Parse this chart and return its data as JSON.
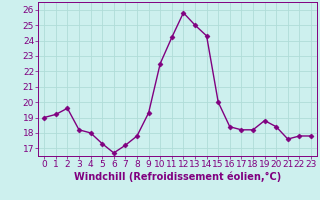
{
  "x": [
    0,
    1,
    2,
    3,
    4,
    5,
    6,
    7,
    8,
    9,
    10,
    11,
    12,
    13,
    14,
    15,
    16,
    17,
    18,
    19,
    20,
    21,
    22,
    23
  ],
  "y": [
    19.0,
    19.2,
    19.6,
    18.2,
    18.0,
    17.3,
    16.7,
    17.2,
    17.8,
    19.3,
    22.5,
    24.2,
    25.8,
    25.0,
    24.3,
    20.0,
    18.4,
    18.2,
    18.2,
    18.8,
    18.4,
    17.6,
    17.8,
    17.8
  ],
  "line_color": "#800080",
  "marker": "D",
  "marker_size": 2.5,
  "line_width": 1.0,
  "xlabel": "Windchill (Refroidissement éolien,°C)",
  "xlabel_fontsize": 7,
  "ylabel_ticks": [
    17,
    18,
    19,
    20,
    21,
    22,
    23,
    24,
    25,
    26
  ],
  "xtick_labels": [
    "0",
    "1",
    "2",
    "3",
    "4",
    "5",
    "6",
    "7",
    "8",
    "9",
    "10",
    "11",
    "12",
    "13",
    "14",
    "15",
    "16",
    "17",
    "18",
    "19",
    "20",
    "21",
    "22",
    "23"
  ],
  "ylim": [
    16.5,
    26.5
  ],
  "xlim": [
    -0.5,
    23.5
  ],
  "bg_color": "#cdf0ee",
  "grid_color": "#b0dcd8",
  "tick_color": "#800080",
  "tick_fontsize": 6.5
}
